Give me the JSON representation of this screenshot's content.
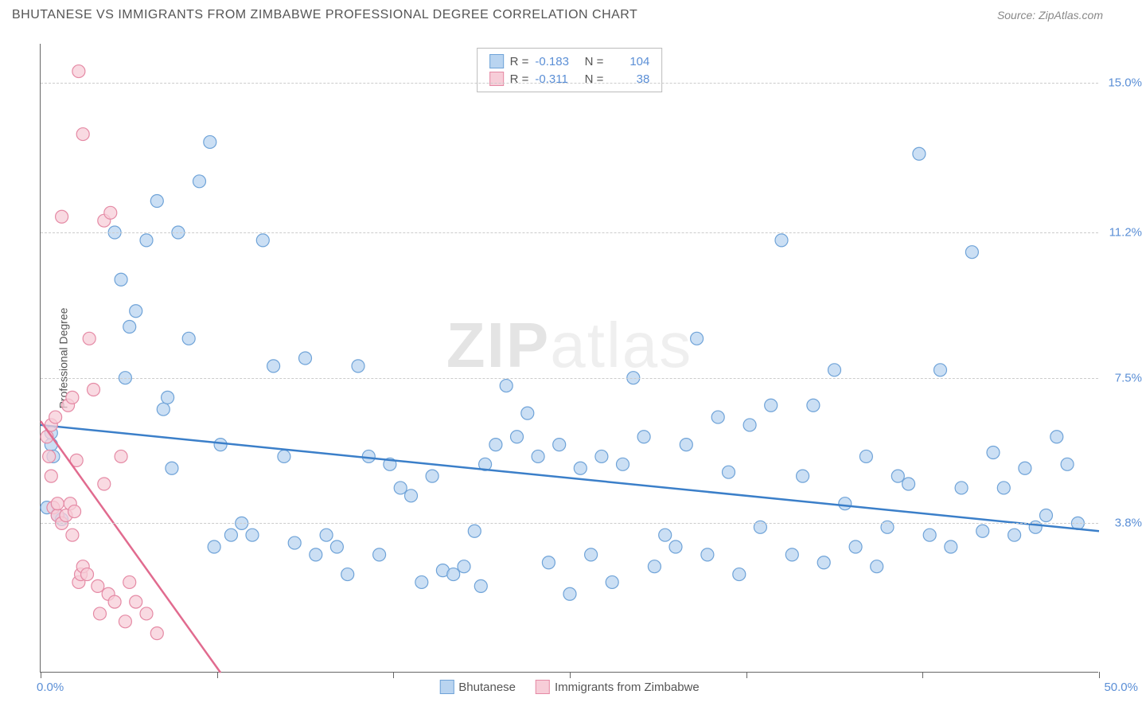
{
  "title": "BHUTANESE VS IMMIGRANTS FROM ZIMBABWE PROFESSIONAL DEGREE CORRELATION CHART",
  "source": "Source: ZipAtlas.com",
  "y_axis_title": "Professional Degree",
  "watermark_a": "ZIP",
  "watermark_b": "atlas",
  "chart": {
    "type": "scatter",
    "xlim": [
      0,
      50
    ],
    "ylim": [
      0,
      16
    ],
    "x_min_label": "0.0%",
    "x_max_label": "50.0%",
    "x_ticks": [
      0,
      8.33,
      16.67,
      25,
      33.33,
      41.67,
      50
    ],
    "y_gridlines": [
      {
        "value": 3.8,
        "label": "3.8%"
      },
      {
        "value": 7.5,
        "label": "7.5%"
      },
      {
        "value": 11.2,
        "label": "11.2%"
      },
      {
        "value": 15.0,
        "label": "15.0%"
      }
    ],
    "background_color": "#ffffff",
    "grid_color": "#cccccc",
    "axis_color": "#666666",
    "label_color": "#5b8fd6"
  },
  "series": [
    {
      "name": "Bhutanese",
      "color_fill": "#b9d4f0",
      "color_stroke": "#6fa3d8",
      "line_color": "#3b7fc9",
      "marker_radius": 8,
      "R": "-0.183",
      "N": "104",
      "trend": {
        "x1": 0,
        "y1": 6.3,
        "x2": 50,
        "y2": 3.6
      },
      "points": [
        [
          0.3,
          4.2
        ],
        [
          0.5,
          5.8
        ],
        [
          0.5,
          6.1
        ],
        [
          0.6,
          5.5
        ],
        [
          0.8,
          4.0
        ],
        [
          1.0,
          3.9
        ],
        [
          3.5,
          11.2
        ],
        [
          3.8,
          10.0
        ],
        [
          4.0,
          7.5
        ],
        [
          4.2,
          8.8
        ],
        [
          4.5,
          9.2
        ],
        [
          5.0,
          11.0
        ],
        [
          5.5,
          12.0
        ],
        [
          5.8,
          6.7
        ],
        [
          6.0,
          7.0
        ],
        [
          6.2,
          5.2
        ],
        [
          6.5,
          11.2
        ],
        [
          7.0,
          8.5
        ],
        [
          7.5,
          12.5
        ],
        [
          8.0,
          13.5
        ],
        [
          8.2,
          3.2
        ],
        [
          8.5,
          5.8
        ],
        [
          9.0,
          3.5
        ],
        [
          9.5,
          3.8
        ],
        [
          10.0,
          3.5
        ],
        [
          10.5,
          11.0
        ],
        [
          11.0,
          7.8
        ],
        [
          11.5,
          5.5
        ],
        [
          12.0,
          3.3
        ],
        [
          12.5,
          8.0
        ],
        [
          13.0,
          3.0
        ],
        [
          13.5,
          3.5
        ],
        [
          14.0,
          3.2
        ],
        [
          14.5,
          2.5
        ],
        [
          15.0,
          7.8
        ],
        [
          15.5,
          5.5
        ],
        [
          16.0,
          3.0
        ],
        [
          16.5,
          5.3
        ],
        [
          17.0,
          4.7
        ],
        [
          17.5,
          4.5
        ],
        [
          18.0,
          2.3
        ],
        [
          18.5,
          5.0
        ],
        [
          19.0,
          2.6
        ],
        [
          19.5,
          2.5
        ],
        [
          20.0,
          2.7
        ],
        [
          20.5,
          3.6
        ],
        [
          20.8,
          2.2
        ],
        [
          21.0,
          5.3
        ],
        [
          21.5,
          5.8
        ],
        [
          22.0,
          7.3
        ],
        [
          22.5,
          6.0
        ],
        [
          23.0,
          6.6
        ],
        [
          23.5,
          5.5
        ],
        [
          24.0,
          2.8
        ],
        [
          24.5,
          5.8
        ],
        [
          25.0,
          2.0
        ],
        [
          25.5,
          5.2
        ],
        [
          26.0,
          3.0
        ],
        [
          26.5,
          5.5
        ],
        [
          27.0,
          2.3
        ],
        [
          27.5,
          5.3
        ],
        [
          28.0,
          7.5
        ],
        [
          28.5,
          6.0
        ],
        [
          29.0,
          2.7
        ],
        [
          29.5,
          3.5
        ],
        [
          30.0,
          3.2
        ],
        [
          30.5,
          5.8
        ],
        [
          31.0,
          8.5
        ],
        [
          31.5,
          3.0
        ],
        [
          32.0,
          6.5
        ],
        [
          32.5,
          5.1
        ],
        [
          33.0,
          2.5
        ],
        [
          33.5,
          6.3
        ],
        [
          34.0,
          3.7
        ],
        [
          34.5,
          6.8
        ],
        [
          35.0,
          11.0
        ],
        [
          35.5,
          3.0
        ],
        [
          36.0,
          5.0
        ],
        [
          36.5,
          6.8
        ],
        [
          37.0,
          2.8
        ],
        [
          37.5,
          7.7
        ],
        [
          38.0,
          4.3
        ],
        [
          38.5,
          3.2
        ],
        [
          39.0,
          5.5
        ],
        [
          39.5,
          2.7
        ],
        [
          40.0,
          3.7
        ],
        [
          40.5,
          5.0
        ],
        [
          41.0,
          4.8
        ],
        [
          41.5,
          13.2
        ],
        [
          42.0,
          3.5
        ],
        [
          42.5,
          7.7
        ],
        [
          43.0,
          3.2
        ],
        [
          43.5,
          4.7
        ],
        [
          44.0,
          10.7
        ],
        [
          44.5,
          3.6
        ],
        [
          45.0,
          5.6
        ],
        [
          45.5,
          4.7
        ],
        [
          46.0,
          3.5
        ],
        [
          46.5,
          5.2
        ],
        [
          47.0,
          3.7
        ],
        [
          47.5,
          4.0
        ],
        [
          48.0,
          6.0
        ],
        [
          48.5,
          5.3
        ],
        [
          49.0,
          3.8
        ]
      ]
    },
    {
      "name": "Immigrants from Zimbabwe",
      "color_fill": "#f7cdd8",
      "color_stroke": "#e58aa5",
      "line_color": "#e16b8f",
      "marker_radius": 8,
      "R": "-0.311",
      "N": "38",
      "trend": {
        "x1": 0,
        "y1": 6.4,
        "x2": 8.5,
        "y2": 0
      },
      "points": [
        [
          0.3,
          6.0
        ],
        [
          0.4,
          5.5
        ],
        [
          0.5,
          6.3
        ],
        [
          0.5,
          5.0
        ],
        [
          0.6,
          4.2
        ],
        [
          0.7,
          6.5
        ],
        [
          0.8,
          4.0
        ],
        [
          0.8,
          4.3
        ],
        [
          1.0,
          3.8
        ],
        [
          1.0,
          11.6
        ],
        [
          1.2,
          4.0
        ],
        [
          1.3,
          6.8
        ],
        [
          1.4,
          4.3
        ],
        [
          1.5,
          3.5
        ],
        [
          1.5,
          7.0
        ],
        [
          1.6,
          4.1
        ],
        [
          1.7,
          5.4
        ],
        [
          1.8,
          2.3
        ],
        [
          1.8,
          15.3
        ],
        [
          1.9,
          2.5
        ],
        [
          2.0,
          2.7
        ],
        [
          2.0,
          13.7
        ],
        [
          2.2,
          2.5
        ],
        [
          2.3,
          8.5
        ],
        [
          2.5,
          7.2
        ],
        [
          2.7,
          2.2
        ],
        [
          2.8,
          1.5
        ],
        [
          3.0,
          11.5
        ],
        [
          3.0,
          4.8
        ],
        [
          3.2,
          2.0
        ],
        [
          3.3,
          11.7
        ],
        [
          3.5,
          1.8
        ],
        [
          3.8,
          5.5
        ],
        [
          4.0,
          1.3
        ],
        [
          4.2,
          2.3
        ],
        [
          4.5,
          1.8
        ],
        [
          5.0,
          1.5
        ],
        [
          5.5,
          1.0
        ]
      ]
    }
  ],
  "bottom_legend": [
    {
      "label": "Bhutanese",
      "fill": "#b9d4f0",
      "stroke": "#6fa3d8"
    },
    {
      "label": "Immigrants from Zimbabwe",
      "fill": "#f7cdd8",
      "stroke": "#e58aa5"
    }
  ]
}
